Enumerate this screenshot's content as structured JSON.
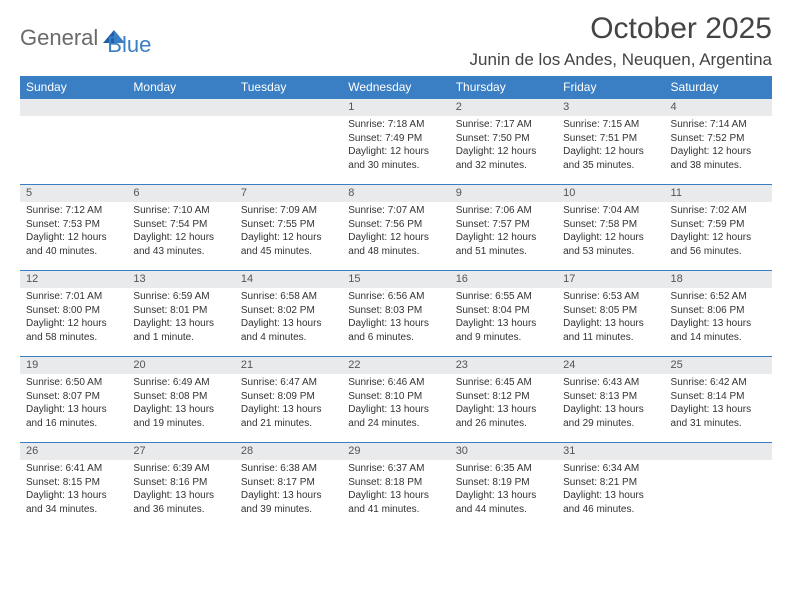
{
  "logo": {
    "general": "General",
    "blue": "Blue"
  },
  "title": "October 2025",
  "location": "Junin de los Andes, Neuquen, Argentina",
  "colors": {
    "header_bg": "#3a7fc4",
    "header_text": "#ffffff",
    "daynum_bg": "#e8eaec",
    "row_border": "#3a7fc4",
    "body_text": "#333333",
    "logo_gray": "#6a6a6a",
    "logo_blue": "#3a7fc4",
    "page_bg": "#ffffff"
  },
  "typography": {
    "title_fontsize": 30,
    "location_fontsize": 17,
    "weekday_fontsize": 12,
    "daynum_fontsize": 11,
    "body_fontsize": 10
  },
  "weekdays": [
    "Sunday",
    "Monday",
    "Tuesday",
    "Wednesday",
    "Thursday",
    "Friday",
    "Saturday"
  ],
  "weeks": [
    [
      null,
      null,
      null,
      {
        "n": "1",
        "sr": "Sunrise: 7:18 AM",
        "ss": "Sunset: 7:49 PM",
        "dl": "Daylight: 12 hours and 30 minutes."
      },
      {
        "n": "2",
        "sr": "Sunrise: 7:17 AM",
        "ss": "Sunset: 7:50 PM",
        "dl": "Daylight: 12 hours and 32 minutes."
      },
      {
        "n": "3",
        "sr": "Sunrise: 7:15 AM",
        "ss": "Sunset: 7:51 PM",
        "dl": "Daylight: 12 hours and 35 minutes."
      },
      {
        "n": "4",
        "sr": "Sunrise: 7:14 AM",
        "ss": "Sunset: 7:52 PM",
        "dl": "Daylight: 12 hours and 38 minutes."
      }
    ],
    [
      {
        "n": "5",
        "sr": "Sunrise: 7:12 AM",
        "ss": "Sunset: 7:53 PM",
        "dl": "Daylight: 12 hours and 40 minutes."
      },
      {
        "n": "6",
        "sr": "Sunrise: 7:10 AM",
        "ss": "Sunset: 7:54 PM",
        "dl": "Daylight: 12 hours and 43 minutes."
      },
      {
        "n": "7",
        "sr": "Sunrise: 7:09 AM",
        "ss": "Sunset: 7:55 PM",
        "dl": "Daylight: 12 hours and 45 minutes."
      },
      {
        "n": "8",
        "sr": "Sunrise: 7:07 AM",
        "ss": "Sunset: 7:56 PM",
        "dl": "Daylight: 12 hours and 48 minutes."
      },
      {
        "n": "9",
        "sr": "Sunrise: 7:06 AM",
        "ss": "Sunset: 7:57 PM",
        "dl": "Daylight: 12 hours and 51 minutes."
      },
      {
        "n": "10",
        "sr": "Sunrise: 7:04 AM",
        "ss": "Sunset: 7:58 PM",
        "dl": "Daylight: 12 hours and 53 minutes."
      },
      {
        "n": "11",
        "sr": "Sunrise: 7:02 AM",
        "ss": "Sunset: 7:59 PM",
        "dl": "Daylight: 12 hours and 56 minutes."
      }
    ],
    [
      {
        "n": "12",
        "sr": "Sunrise: 7:01 AM",
        "ss": "Sunset: 8:00 PM",
        "dl": "Daylight: 12 hours and 58 minutes."
      },
      {
        "n": "13",
        "sr": "Sunrise: 6:59 AM",
        "ss": "Sunset: 8:01 PM",
        "dl": "Daylight: 13 hours and 1 minute."
      },
      {
        "n": "14",
        "sr": "Sunrise: 6:58 AM",
        "ss": "Sunset: 8:02 PM",
        "dl": "Daylight: 13 hours and 4 minutes."
      },
      {
        "n": "15",
        "sr": "Sunrise: 6:56 AM",
        "ss": "Sunset: 8:03 PM",
        "dl": "Daylight: 13 hours and 6 minutes."
      },
      {
        "n": "16",
        "sr": "Sunrise: 6:55 AM",
        "ss": "Sunset: 8:04 PM",
        "dl": "Daylight: 13 hours and 9 minutes."
      },
      {
        "n": "17",
        "sr": "Sunrise: 6:53 AM",
        "ss": "Sunset: 8:05 PM",
        "dl": "Daylight: 13 hours and 11 minutes."
      },
      {
        "n": "18",
        "sr": "Sunrise: 6:52 AM",
        "ss": "Sunset: 8:06 PM",
        "dl": "Daylight: 13 hours and 14 minutes."
      }
    ],
    [
      {
        "n": "19",
        "sr": "Sunrise: 6:50 AM",
        "ss": "Sunset: 8:07 PM",
        "dl": "Daylight: 13 hours and 16 minutes."
      },
      {
        "n": "20",
        "sr": "Sunrise: 6:49 AM",
        "ss": "Sunset: 8:08 PM",
        "dl": "Daylight: 13 hours and 19 minutes."
      },
      {
        "n": "21",
        "sr": "Sunrise: 6:47 AM",
        "ss": "Sunset: 8:09 PM",
        "dl": "Daylight: 13 hours and 21 minutes."
      },
      {
        "n": "22",
        "sr": "Sunrise: 6:46 AM",
        "ss": "Sunset: 8:10 PM",
        "dl": "Daylight: 13 hours and 24 minutes."
      },
      {
        "n": "23",
        "sr": "Sunrise: 6:45 AM",
        "ss": "Sunset: 8:12 PM",
        "dl": "Daylight: 13 hours and 26 minutes."
      },
      {
        "n": "24",
        "sr": "Sunrise: 6:43 AM",
        "ss": "Sunset: 8:13 PM",
        "dl": "Daylight: 13 hours and 29 minutes."
      },
      {
        "n": "25",
        "sr": "Sunrise: 6:42 AM",
        "ss": "Sunset: 8:14 PM",
        "dl": "Daylight: 13 hours and 31 minutes."
      }
    ],
    [
      {
        "n": "26",
        "sr": "Sunrise: 6:41 AM",
        "ss": "Sunset: 8:15 PM",
        "dl": "Daylight: 13 hours and 34 minutes."
      },
      {
        "n": "27",
        "sr": "Sunrise: 6:39 AM",
        "ss": "Sunset: 8:16 PM",
        "dl": "Daylight: 13 hours and 36 minutes."
      },
      {
        "n": "28",
        "sr": "Sunrise: 6:38 AM",
        "ss": "Sunset: 8:17 PM",
        "dl": "Daylight: 13 hours and 39 minutes."
      },
      {
        "n": "29",
        "sr": "Sunrise: 6:37 AM",
        "ss": "Sunset: 8:18 PM",
        "dl": "Daylight: 13 hours and 41 minutes."
      },
      {
        "n": "30",
        "sr": "Sunrise: 6:35 AM",
        "ss": "Sunset: 8:19 PM",
        "dl": "Daylight: 13 hours and 44 minutes."
      },
      {
        "n": "31",
        "sr": "Sunrise: 6:34 AM",
        "ss": "Sunset: 8:21 PM",
        "dl": "Daylight: 13 hours and 46 minutes."
      },
      null
    ]
  ]
}
